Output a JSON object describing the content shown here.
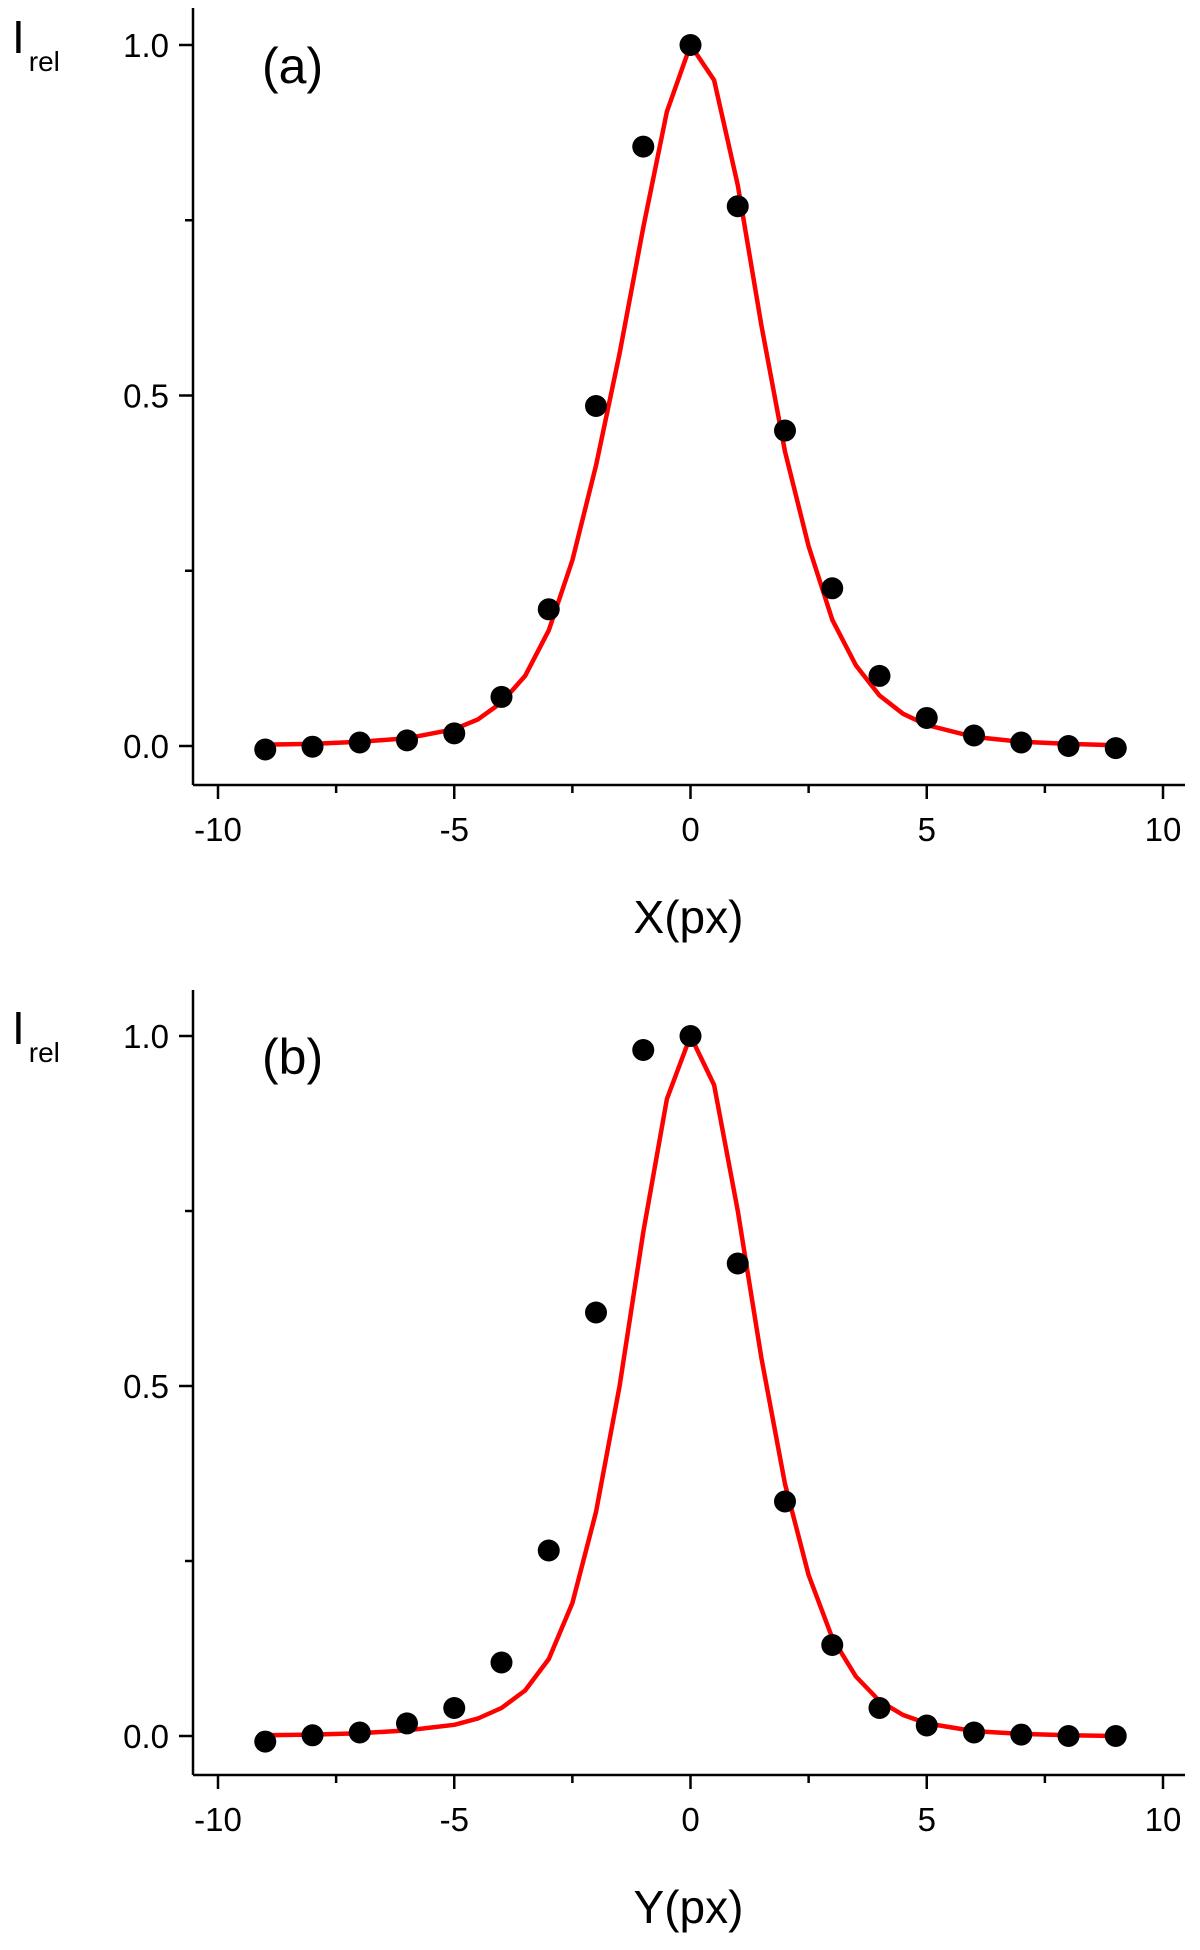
{
  "chart_data": [
    {
      "type": "scatter",
      "panel_label": "(a)",
      "xlabel": "X(px)",
      "ylabel": "I",
      "ylabel_subscript": "rel",
      "xlim": [
        -10,
        10
      ],
      "ylim": [
        -0.05,
        1.05
      ],
      "x_ticks": [
        -10,
        -5,
        0,
        5,
        10
      ],
      "x_tick_labels": [
        "-10",
        "-5",
        "0",
        "5",
        "10"
      ],
      "y_ticks": [
        0.0,
        0.5,
        1.0
      ],
      "y_tick_labels": [
        "0.0",
        "0.5",
        "1.0"
      ],
      "grid": false,
      "point_color": "#000000",
      "curve_color": "#ff0000",
      "series": [
        {
          "kind": "points",
          "x": [
            -9,
            -8,
            -7,
            -6,
            -5,
            -4,
            -3,
            -2,
            -1,
            0,
            1,
            2,
            3,
            4,
            5,
            6,
            7,
            8,
            9
          ],
          "y": [
            -0.005,
            -0.001,
            0.005,
            0.008,
            0.018,
            0.07,
            0.195,
            0.485,
            0.855,
            1.0,
            0.77,
            0.45,
            0.225,
            0.1,
            0.04,
            0.015,
            0.005,
            0.0,
            -0.003
          ]
        },
        {
          "kind": "fit",
          "x": [
            -9,
            -8,
            -7,
            -6,
            -5,
            -4.5,
            -4,
            -3.5,
            -3,
            -2.5,
            -2,
            -1.5,
            -1,
            -0.5,
            0,
            0.5,
            1,
            1.5,
            2,
            2.5,
            3,
            3.5,
            4,
            4.5,
            5,
            6,
            7,
            8,
            9
          ],
          "y": [
            0.002,
            0.003,
            0.006,
            0.011,
            0.024,
            0.038,
            0.062,
            0.1,
            0.165,
            0.265,
            0.4,
            0.56,
            0.74,
            0.905,
            1.0,
            0.95,
            0.8,
            0.6,
            0.42,
            0.285,
            0.18,
            0.115,
            0.072,
            0.046,
            0.03,
            0.013,
            0.006,
            0.003,
            0.001
          ]
        }
      ]
    },
    {
      "type": "scatter",
      "panel_label": "(b)",
      "xlabel": "Y(px)",
      "ylabel": "I",
      "ylabel_subscript": "rel",
      "xlim": [
        -10,
        10
      ],
      "ylim": [
        -0.05,
        1.05
      ],
      "x_ticks": [
        -10,
        -5,
        0,
        5,
        10
      ],
      "x_tick_labels": [
        "-10",
        "-5",
        "0",
        "5",
        "10"
      ],
      "y_ticks": [
        0.0,
        0.5,
        1.0
      ],
      "y_tick_labels": [
        "0.0",
        "0.5",
        "1.0"
      ],
      "grid": false,
      "point_color": "#000000",
      "curve_color": "#ff0000",
      "series": [
        {
          "kind": "points",
          "x": [
            -9,
            -8,
            -7,
            -6,
            -5,
            -4,
            -3,
            -2,
            -1,
            0,
            1,
            2,
            3,
            4,
            5,
            6,
            7,
            8,
            9
          ],
          "y": [
            -0.008,
            0.001,
            0.005,
            0.018,
            0.04,
            0.105,
            0.265,
            0.605,
            0.98,
            1.0,
            0.675,
            0.335,
            0.13,
            0.04,
            0.015,
            0.005,
            0.002,
            0.0,
            0.0
          ]
        },
        {
          "kind": "fit",
          "x": [
            -9,
            -8,
            -7,
            -6,
            -5,
            -4.5,
            -4,
            -3.5,
            -3,
            -2.5,
            -2,
            -1.5,
            -1,
            -0.5,
            0,
            0.5,
            1,
            1.5,
            2,
            2.5,
            3,
            3.5,
            4,
            4.5,
            5,
            6,
            7,
            8,
            9
          ],
          "y": [
            0.001,
            0.002,
            0.004,
            0.008,
            0.016,
            0.025,
            0.04,
            0.065,
            0.11,
            0.19,
            0.32,
            0.5,
            0.72,
            0.91,
            1.0,
            0.93,
            0.75,
            0.54,
            0.36,
            0.23,
            0.14,
            0.085,
            0.05,
            0.03,
            0.018,
            0.007,
            0.003,
            0.001,
            0.0
          ]
        }
      ]
    }
  ]
}
